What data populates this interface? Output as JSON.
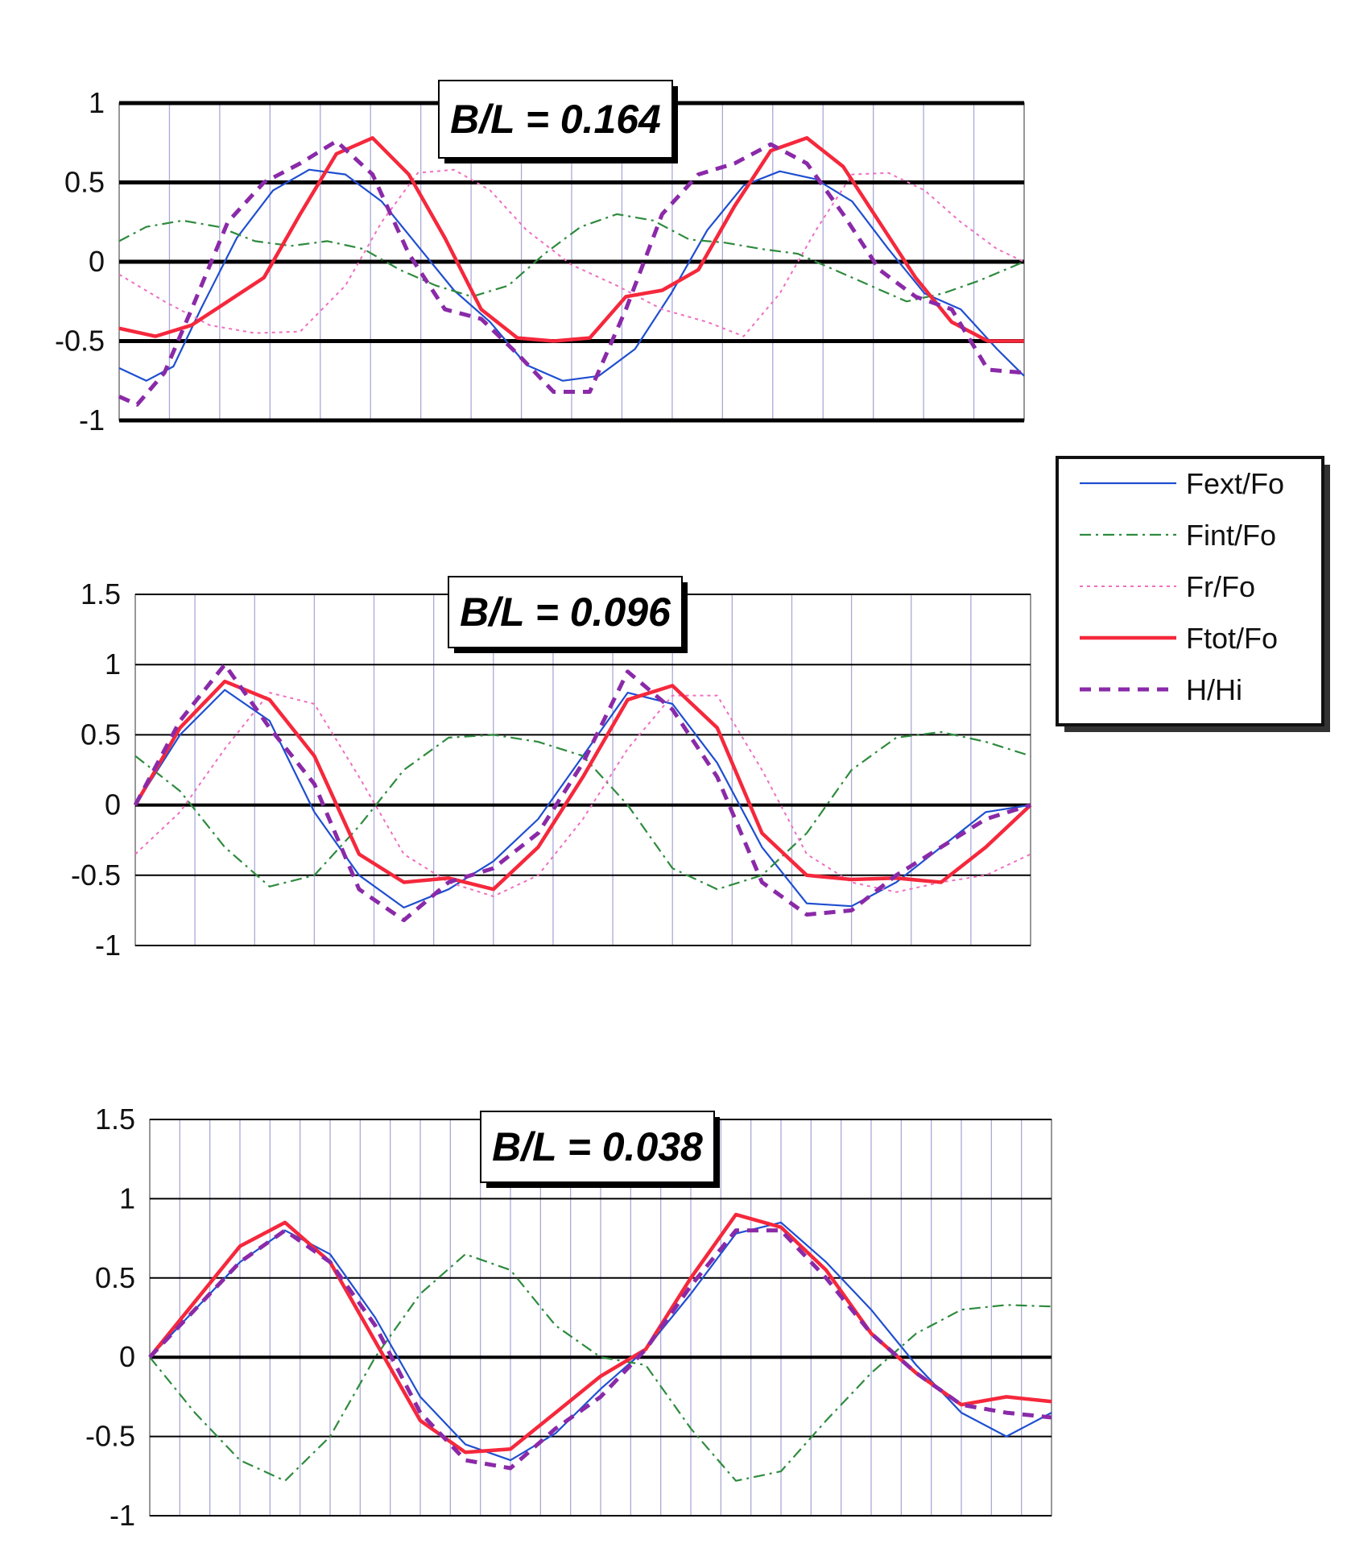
{
  "colors": {
    "Fext/Fo": "#1f4fd0",
    "Fint/Fo": "#2e8b3e",
    "Fr/Fo": "#ef6fc0",
    "Ftot/Fo": "#f5283c",
    "H/Hi": "#8a2aa8",
    "grid_vertical": "#a9a9d8",
    "grid_horizontal": "#000000"
  },
  "legend": {
    "items": [
      {
        "label": "Fext/Fo",
        "key": "Fext/Fo",
        "style": "solid"
      },
      {
        "label": "Fint/Fo",
        "key": "Fint/Fo",
        "style": "dashdot"
      },
      {
        "label": "Fr/Fo",
        "key": "Fr/Fo",
        "style": "dotted"
      },
      {
        "label": "Ftot/Fo",
        "key": "Ftot/Fo",
        "style": "solid-thick"
      },
      {
        "label": "H/Hi",
        "key": "H/Hi",
        "style": "dashed-thick"
      }
    ],
    "placement": "right"
  },
  "chart_data": [
    {
      "type": "line",
      "title": "B/L = 0.164",
      "xlabel": "",
      "ylabel": "",
      "xlim": [
        0,
        1
      ],
      "ylim": [
        -1,
        1
      ],
      "yticks": [
        1,
        0.5,
        0,
        -0.5,
        -1
      ],
      "yticklabels": [
        "1",
        "0.5",
        "0",
        "-0.5",
        "-1"
      ],
      "grid": true,
      "series": [
        {
          "name": "Fext/Fo",
          "x": [
            0,
            0.03,
            0.06,
            0.09,
            0.13,
            0.17,
            0.21,
            0.25,
            0.29,
            0.33,
            0.37,
            0.41,
            0.45,
            0.49,
            0.53,
            0.57,
            0.61,
            0.65,
            0.69,
            0.73,
            0.77,
            0.81,
            0.85,
            0.89,
            0.93,
            0.97,
            1.0
          ],
          "y": [
            -0.67,
            -0.75,
            -0.66,
            -0.3,
            0.15,
            0.45,
            0.58,
            0.55,
            0.38,
            0.1,
            -0.18,
            -0.38,
            -0.65,
            -0.75,
            -0.72,
            -0.55,
            -0.2,
            0.2,
            0.48,
            0.57,
            0.52,
            0.38,
            0.08,
            -0.2,
            -0.3,
            -0.55,
            -0.72
          ]
        },
        {
          "name": "Fint/Fo",
          "x": [
            0,
            0.03,
            0.07,
            0.11,
            0.15,
            0.19,
            0.23,
            0.27,
            0.31,
            0.35,
            0.39,
            0.43,
            0.47,
            0.51,
            0.55,
            0.59,
            0.63,
            0.67,
            0.71,
            0.75,
            0.79,
            0.83,
            0.87,
            0.91,
            0.95,
            1.0
          ],
          "y": [
            0.13,
            0.22,
            0.26,
            0.22,
            0.13,
            0.1,
            0.13,
            0.08,
            -0.05,
            -0.15,
            -0.22,
            -0.15,
            0.05,
            0.22,
            0.3,
            0.26,
            0.14,
            0.12,
            0.08,
            0.05,
            -0.05,
            -0.15,
            -0.25,
            -0.2,
            -0.12,
            0.0
          ]
        },
        {
          "name": "Fr/Fo",
          "x": [
            0,
            0.05,
            0.1,
            0.15,
            0.2,
            0.25,
            0.29,
            0.33,
            0.37,
            0.41,
            0.45,
            0.5,
            0.55,
            0.6,
            0.65,
            0.69,
            0.73,
            0.77,
            0.81,
            0.85,
            0.89,
            0.93,
            0.97,
            1.0
          ],
          "y": [
            -0.08,
            -0.25,
            -0.4,
            -0.45,
            -0.44,
            -0.15,
            0.25,
            0.56,
            0.58,
            0.45,
            0.2,
            -0.02,
            -0.15,
            -0.3,
            -0.38,
            -0.47,
            -0.2,
            0.2,
            0.55,
            0.56,
            0.45,
            0.25,
            0.08,
            0.0
          ]
        },
        {
          "name": "Ftot/Fo",
          "x": [
            0,
            0.04,
            0.08,
            0.12,
            0.16,
            0.2,
            0.24,
            0.28,
            0.32,
            0.36,
            0.4,
            0.44,
            0.48,
            0.52,
            0.56,
            0.6,
            0.64,
            0.68,
            0.72,
            0.76,
            0.8,
            0.84,
            0.88,
            0.92,
            0.96,
            1.0
          ],
          "y": [
            -0.42,
            -0.47,
            -0.4,
            -0.25,
            -0.1,
            0.3,
            0.68,
            0.78,
            0.55,
            0.15,
            -0.3,
            -0.48,
            -0.5,
            -0.48,
            -0.22,
            -0.18,
            -0.05,
            0.35,
            0.7,
            0.78,
            0.6,
            0.25,
            -0.1,
            -0.38,
            -0.5,
            -0.5
          ]
        },
        {
          "name": "H/Hi",
          "x": [
            0,
            0.02,
            0.05,
            0.08,
            0.12,
            0.16,
            0.2,
            0.24,
            0.28,
            0.32,
            0.36,
            0.4,
            0.44,
            0.48,
            0.52,
            0.56,
            0.6,
            0.64,
            0.68,
            0.72,
            0.76,
            0.8,
            0.84,
            0.88,
            0.92,
            0.96,
            1.0
          ],
          "y": [
            -0.85,
            -0.9,
            -0.7,
            -0.3,
            0.25,
            0.5,
            0.62,
            0.76,
            0.55,
            0.05,
            -0.3,
            -0.36,
            -0.58,
            -0.82,
            -0.82,
            -0.3,
            0.3,
            0.55,
            0.62,
            0.74,
            0.62,
            0.3,
            -0.05,
            -0.22,
            -0.3,
            -0.68,
            -0.7
          ]
        }
      ]
    },
    {
      "type": "line",
      "title": "B/L = 0.096",
      "xlabel": "",
      "ylabel": "",
      "xlim": [
        0,
        1
      ],
      "ylim": [
        -1,
        1.5
      ],
      "yticks": [
        1.5,
        1,
        0.5,
        0,
        -0.5,
        -1
      ],
      "yticklabels": [
        "1.5",
        "1",
        "0.5",
        "0",
        "-0.5",
        "-1"
      ],
      "grid": true,
      "series": [
        {
          "name": "Fext/Fo",
          "x": [
            0,
            0.05,
            0.1,
            0.15,
            0.2,
            0.25,
            0.3,
            0.35,
            0.4,
            0.45,
            0.5,
            0.55,
            0.6,
            0.65,
            0.7,
            0.75,
            0.8,
            0.85,
            0.9,
            0.95,
            1.0
          ],
          "y": [
            0.0,
            0.5,
            0.82,
            0.6,
            -0.05,
            -0.5,
            -0.73,
            -0.6,
            -0.4,
            -0.1,
            0.35,
            0.8,
            0.72,
            0.3,
            -0.3,
            -0.7,
            -0.72,
            -0.55,
            -0.3,
            -0.05,
            0.0
          ]
        },
        {
          "name": "Fint/Fo",
          "x": [
            0,
            0.05,
            0.1,
            0.15,
            0.2,
            0.25,
            0.3,
            0.35,
            0.4,
            0.45,
            0.5,
            0.55,
            0.6,
            0.65,
            0.7,
            0.75,
            0.8,
            0.85,
            0.9,
            0.95,
            1.0
          ],
          "y": [
            0.35,
            0.1,
            -0.3,
            -0.58,
            -0.5,
            -0.15,
            0.25,
            0.48,
            0.5,
            0.45,
            0.35,
            0.0,
            -0.45,
            -0.6,
            -0.5,
            -0.2,
            0.25,
            0.48,
            0.52,
            0.45,
            0.35
          ]
        },
        {
          "name": "Fr/Fo",
          "x": [
            0,
            0.05,
            0.1,
            0.15,
            0.2,
            0.25,
            0.3,
            0.35,
            0.4,
            0.45,
            0.5,
            0.55,
            0.6,
            0.65,
            0.7,
            0.75,
            0.8,
            0.85,
            0.9,
            0.95,
            1.0
          ],
          "y": [
            -0.35,
            -0.05,
            0.4,
            0.8,
            0.72,
            0.2,
            -0.35,
            -0.55,
            -0.65,
            -0.5,
            -0.1,
            0.4,
            0.78,
            0.78,
            0.25,
            -0.35,
            -0.55,
            -0.62,
            -0.55,
            -0.5,
            -0.35
          ]
        },
        {
          "name": "Ftot/Fo",
          "x": [
            0,
            0.05,
            0.1,
            0.15,
            0.2,
            0.25,
            0.3,
            0.35,
            0.4,
            0.45,
            0.5,
            0.55,
            0.6,
            0.65,
            0.7,
            0.75,
            0.8,
            0.85,
            0.9,
            0.95,
            1.0
          ],
          "y": [
            0.0,
            0.55,
            0.88,
            0.75,
            0.35,
            -0.35,
            -0.55,
            -0.52,
            -0.6,
            -0.3,
            0.2,
            0.75,
            0.85,
            0.55,
            -0.2,
            -0.5,
            -0.53,
            -0.52,
            -0.55,
            -0.3,
            0.0
          ]
        },
        {
          "name": "H/Hi",
          "x": [
            0,
            0.05,
            0.1,
            0.15,
            0.2,
            0.25,
            0.3,
            0.35,
            0.4,
            0.45,
            0.5,
            0.55,
            0.6,
            0.65,
            0.7,
            0.75,
            0.8,
            0.85,
            0.9,
            0.95,
            1.0
          ],
          "y": [
            0.0,
            0.6,
            1.0,
            0.55,
            0.15,
            -0.6,
            -0.82,
            -0.55,
            -0.45,
            -0.2,
            0.3,
            0.95,
            0.68,
            0.2,
            -0.55,
            -0.78,
            -0.75,
            -0.5,
            -0.3,
            -0.1,
            0.0
          ]
        }
      ]
    },
    {
      "type": "line",
      "title": "B/L = 0.038",
      "xlabel": "",
      "ylabel": "",
      "xlim": [
        0,
        1
      ],
      "ylim": [
        -1,
        1.5
      ],
      "yticks": [
        1.5,
        1,
        0.5,
        0,
        -0.5,
        -1
      ],
      "yticklabels": [
        "1.5",
        "1",
        "0.5",
        "0",
        "-0.5",
        "-1"
      ],
      "grid": true,
      "series": [
        {
          "name": "Fext/Fo",
          "x": [
            0,
            0.05,
            0.1,
            0.15,
            0.2,
            0.25,
            0.3,
            0.35,
            0.4,
            0.45,
            0.5,
            0.55,
            0.6,
            0.65,
            0.7,
            0.75,
            0.8,
            0.85,
            0.9,
            0.95,
            1.0
          ],
          "y": [
            0.0,
            0.3,
            0.6,
            0.8,
            0.65,
            0.25,
            -0.25,
            -0.55,
            -0.65,
            -0.48,
            -0.2,
            0.05,
            0.4,
            0.78,
            0.85,
            0.6,
            0.3,
            -0.05,
            -0.35,
            -0.5,
            -0.35
          ]
        },
        {
          "name": "Fint/Fo",
          "x": [
            0,
            0.05,
            0.1,
            0.15,
            0.2,
            0.25,
            0.3,
            0.35,
            0.4,
            0.45,
            0.5,
            0.55,
            0.6,
            0.65,
            0.7,
            0.75,
            0.8,
            0.85,
            0.9,
            0.95,
            1.0
          ],
          "y": [
            0.0,
            -0.35,
            -0.65,
            -0.78,
            -0.5,
            0.0,
            0.4,
            0.65,
            0.55,
            0.2,
            0.0,
            -0.05,
            -0.45,
            -0.78,
            -0.72,
            -0.4,
            -0.1,
            0.15,
            0.3,
            0.33,
            0.32
          ]
        },
        {
          "name": "Ftot/Fo",
          "x": [
            0,
            0.05,
            0.1,
            0.15,
            0.2,
            0.25,
            0.3,
            0.35,
            0.4,
            0.45,
            0.5,
            0.55,
            0.6,
            0.65,
            0.7,
            0.75,
            0.8,
            0.85,
            0.9,
            0.95,
            1.0
          ],
          "y": [
            0.0,
            0.35,
            0.7,
            0.85,
            0.6,
            0.1,
            -0.4,
            -0.6,
            -0.58,
            -0.35,
            -0.12,
            0.05,
            0.5,
            0.9,
            0.82,
            0.55,
            0.15,
            -0.1,
            -0.3,
            -0.25,
            -0.28
          ]
        },
        {
          "name": "H/Hi",
          "x": [
            0,
            0.05,
            0.1,
            0.15,
            0.2,
            0.25,
            0.3,
            0.35,
            0.4,
            0.45,
            0.5,
            0.55,
            0.6,
            0.65,
            0.7,
            0.75,
            0.8,
            0.85,
            0.9,
            0.95,
            1.0
          ],
          "y": [
            0.0,
            0.3,
            0.6,
            0.8,
            0.6,
            0.2,
            -0.35,
            -0.65,
            -0.7,
            -0.45,
            -0.25,
            0.05,
            0.45,
            0.8,
            0.8,
            0.5,
            0.15,
            -0.1,
            -0.3,
            -0.35,
            -0.38
          ]
        }
      ]
    }
  ]
}
